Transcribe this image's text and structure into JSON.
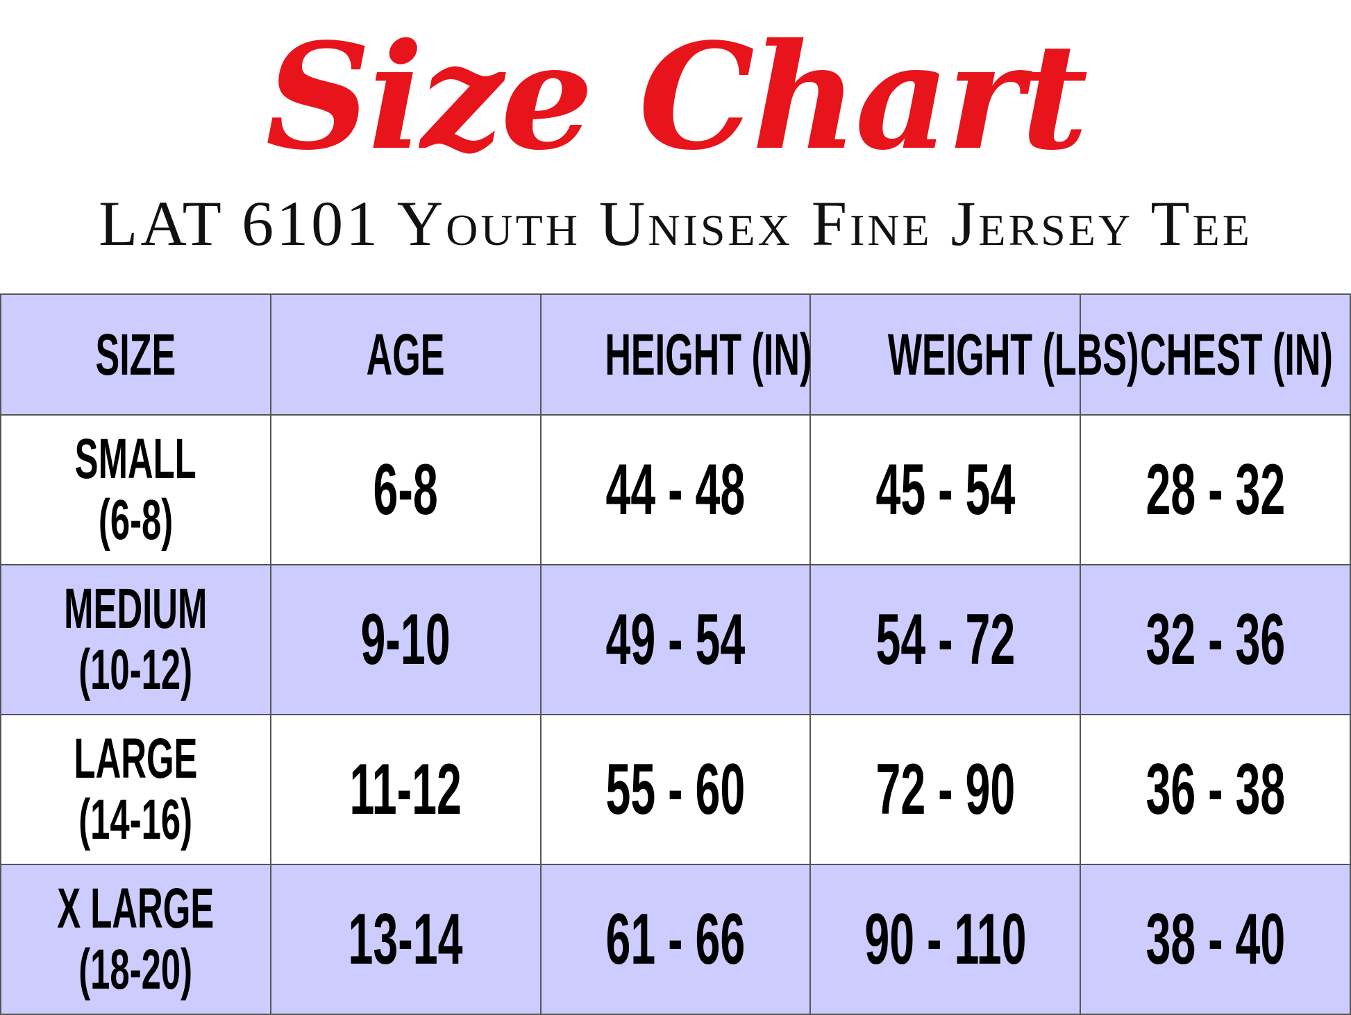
{
  "title": "Size Chart",
  "subtitle": "LAT 6101 Youth Unisex Fine Jersey Tee",
  "colors": {
    "title": "#e8141b",
    "header_bg": "#ccccff",
    "alt_row_bg": "#ccccff",
    "row_bg": "#ffffff"
  },
  "table": {
    "headers": [
      "SIZE",
      "AGE",
      "HEIGHT (IN)",
      "WEIGHT (LBS)",
      "CHEST (IN)"
    ],
    "rows": [
      {
        "size": "SMALL",
        "size_range": "(6-8)",
        "age": "6-8",
        "height": "44 - 48",
        "weight": "45 - 54",
        "chest": "28 - 32"
      },
      {
        "size": "MEDIUM",
        "size_range": "(10-12)",
        "age": "9-10",
        "height": "49 - 54",
        "weight": "54 - 72",
        "chest": "32 - 36"
      },
      {
        "size": "LARGE",
        "size_range": "(14-16)",
        "age": "11-12",
        "height": "55 - 60",
        "weight": "72 - 90",
        "chest": "36 - 38"
      },
      {
        "size": "X LARGE",
        "size_range": "(18-20)",
        "age": "13-14",
        "height": "61 - 66",
        "weight": "90 - 110",
        "chest": "38 - 40"
      }
    ]
  }
}
